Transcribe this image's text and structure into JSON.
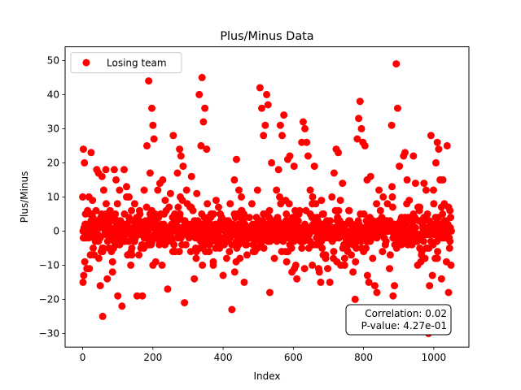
{
  "chart_data": {
    "type": "scatter",
    "title": "Plus/Minus Data",
    "xlabel": "Index",
    "ylabel": "Plus/Minus",
    "xlim": [
      -50,
      1100
    ],
    "ylim": [
      -34,
      54
    ],
    "xticks": [
      0,
      200,
      400,
      600,
      800,
      1000
    ],
    "yticks": [
      -30,
      -20,
      -10,
      0,
      10,
      20,
      30,
      40,
      50
    ],
    "grid": false,
    "legend_position": "upper-left",
    "point_count": 1050,
    "series": [
      {
        "name": "Losing team",
        "color": "#ff0000",
        "points": [
          [
            2,
            24
          ],
          [
            5,
            20
          ],
          [
            3,
            -13
          ],
          [
            1,
            -15
          ],
          [
            8,
            5
          ],
          [
            12,
            -11
          ],
          [
            18,
            10
          ],
          [
            24,
            23
          ],
          [
            28,
            9
          ],
          [
            33,
            -7
          ],
          [
            40,
            18
          ],
          [
            45,
            17
          ],
          [
            50,
            -16
          ],
          [
            55,
            16
          ],
          [
            57,
            -25
          ],
          [
            60,
            12
          ],
          [
            66,
            18
          ],
          [
            70,
            -14
          ],
          [
            78,
            4
          ],
          [
            85,
            -9
          ],
          [
            90,
            18
          ],
          [
            95,
            15
          ],
          [
            100,
            -19
          ],
          [
            105,
            12
          ],
          [
            112,
            -22
          ],
          [
            118,
            18
          ],
          [
            125,
            13
          ],
          [
            132,
            10
          ],
          [
            140,
            -7
          ],
          [
            148,
            8
          ],
          [
            155,
            -19
          ],
          [
            162,
            6
          ],
          [
            170,
            -19
          ],
          [
            175,
            12
          ],
          [
            183,
            25
          ],
          [
            188,
            44
          ],
          [
            192,
            17
          ],
          [
            197,
            36
          ],
          [
            200,
            31
          ],
          [
            203,
            27
          ],
          [
            208,
            -9
          ],
          [
            214,
            12
          ],
          [
            220,
            14
          ],
          [
            228,
            15
          ],
          [
            235,
            9
          ],
          [
            242,
            -17
          ],
          [
            250,
            11
          ],
          [
            258,
            28
          ],
          [
            264,
            -6
          ],
          [
            270,
            17
          ],
          [
            276,
            24
          ],
          [
            280,
            22
          ],
          [
            286,
            19
          ],
          [
            290,
            -21
          ],
          [
            296,
            12
          ],
          [
            302,
            0
          ],
          [
            310,
            16
          ],
          [
            318,
            -14
          ],
          [
            325,
            11
          ],
          [
            332,
            40
          ],
          [
            337,
            25
          ],
          [
            340,
            45
          ],
          [
            344,
            32
          ],
          [
            348,
            36
          ],
          [
            353,
            24
          ],
          [
            360,
            -6
          ],
          [
            366,
            5
          ],
          [
            372,
            -9
          ],
          [
            380,
            9
          ],
          [
            390,
            2
          ],
          [
            400,
            -13
          ],
          [
            410,
            -8
          ],
          [
            420,
            8
          ],
          [
            425,
            -23
          ],
          [
            432,
            15
          ],
          [
            438,
            21
          ],
          [
            445,
            12
          ],
          [
            452,
            10
          ],
          [
            460,
            -15
          ],
          [
            468,
            -7
          ],
          [
            475,
            4
          ],
          [
            482,
            8
          ],
          [
            490,
            -6
          ],
          [
            498,
            12
          ],
          [
            505,
            42
          ],
          [
            510,
            36
          ],
          [
            515,
            28
          ],
          [
            520,
            31
          ],
          [
            524,
            40
          ],
          [
            528,
            37
          ],
          [
            533,
            -18
          ],
          [
            538,
            20
          ],
          [
            545,
            3
          ],
          [
            552,
            12
          ],
          [
            558,
            18
          ],
          [
            563,
            31
          ],
          [
            568,
            28
          ],
          [
            573,
            34
          ],
          [
            578,
            9
          ],
          [
            584,
            21
          ],
          [
            590,
            22
          ],
          [
            596,
            -12
          ],
          [
            602,
            19
          ],
          [
            610,
            -14
          ],
          [
            618,
            6
          ],
          [
            624,
            26
          ],
          [
            628,
            32
          ],
          [
            633,
            30
          ],
          [
            638,
            26
          ],
          [
            642,
            22
          ],
          [
            648,
            12
          ],
          [
            654,
            -10
          ],
          [
            660,
            19
          ],
          [
            668,
            4
          ],
          [
            674,
            -12
          ],
          [
            680,
            9
          ],
          [
            686,
            5
          ],
          [
            692,
            -8
          ],
          [
            698,
            -11
          ],
          [
            704,
            -15
          ],
          [
            710,
            10
          ],
          [
            716,
            17
          ],
          [
            722,
            24
          ],
          [
            728,
            23
          ],
          [
            734,
            9
          ],
          [
            740,
            14
          ],
          [
            746,
            -8
          ],
          [
            752,
            -4
          ],
          [
            758,
            6
          ],
          [
            764,
            -24
          ],
          [
            770,
            -12
          ],
          [
            776,
            -20
          ],
          [
            782,
            27
          ],
          [
            786,
            33
          ],
          [
            790,
            38
          ],
          [
            794,
            30
          ],
          [
            798,
            26
          ],
          [
            804,
            25
          ],
          [
            810,
            15
          ],
          [
            815,
            -15
          ],
          [
            820,
            16
          ],
          [
            826,
            -8
          ],
          [
            832,
            -16
          ],
          [
            838,
            -18
          ],
          [
            844,
            12
          ],
          [
            850,
            0
          ],
          [
            856,
            10
          ],
          [
            862,
            -4
          ],
          [
            868,
            8
          ],
          [
            874,
            -11
          ],
          [
            880,
            31
          ],
          [
            884,
            -19
          ],
          [
            888,
            -16
          ],
          [
            893,
            49
          ],
          [
            897,
            36
          ],
          [
            902,
            19
          ],
          [
            908,
            4
          ],
          [
            914,
            22
          ],
          [
            918,
            23
          ],
          [
            924,
            15
          ],
          [
            930,
            9
          ],
          [
            936,
            3
          ],
          [
            942,
            22
          ],
          [
            948,
            14
          ],
          [
            954,
            -10
          ],
          [
            960,
            7
          ],
          [
            966,
            -6
          ],
          [
            972,
            14
          ],
          [
            978,
            12
          ],
          [
            985,
            -30
          ],
          [
            988,
            -16
          ],
          [
            992,
            28
          ],
          [
            996,
            -13
          ],
          [
            1000,
            8
          ],
          [
            1006,
            20
          ],
          [
            1010,
            26
          ],
          [
            1014,
            24
          ],
          [
            1018,
            15
          ],
          [
            1022,
            -14
          ],
          [
            1026,
            15
          ],
          [
            1030,
            8
          ],
          [
            1034,
            2
          ],
          [
            1038,
            25
          ],
          [
            1042,
            -18
          ],
          [
            1046,
            6
          ],
          [
            1050,
            0
          ]
        ]
      }
    ],
    "annotation": {
      "lines": [
        "Correlation: 0.02",
        "P-value: 4.27e-01"
      ],
      "position": "lower-right"
    }
  }
}
